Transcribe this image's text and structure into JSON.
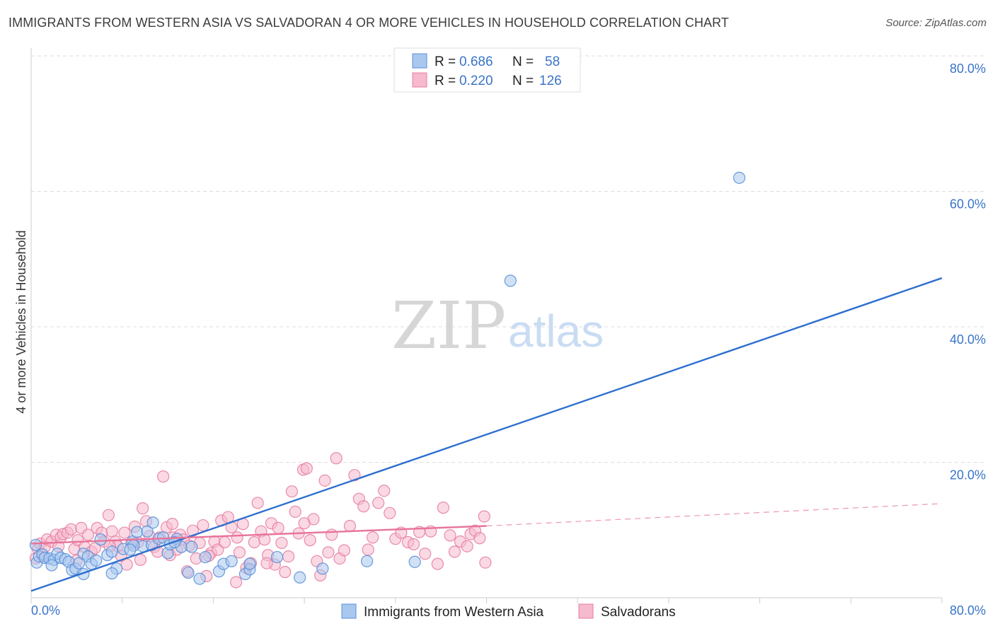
{
  "title": "IMMIGRANTS FROM WESTERN ASIA VS SALVADORAN 4 OR MORE VEHICLES IN HOUSEHOLD CORRELATION CHART",
  "source": "Source: ZipAtlas.com",
  "watermark": {
    "zip": "ZIP",
    "atlas": "atlas"
  },
  "legend": {
    "rows": [
      {
        "r_label": "R =",
        "r_value": "0.686",
        "n_label": "N =",
        "n_value": "58"
      },
      {
        "r_label": "R =",
        "r_value": "0.220",
        "n_label": "N =",
        "n_value": "126"
      }
    ]
  },
  "bottom_legend": [
    "Immigrants from Western Asia",
    "Salvadorans"
  ],
  "colors": {
    "blue_fill": "#a9c8ee",
    "blue_stroke": "#5a8fd8",
    "blue_line": "#2f6fcf",
    "pink_fill": "#f6b9cd",
    "pink_stroke": "#e77fa0",
    "pink_line": "#e8739a",
    "grid": "#dddddd",
    "axis_text": "#3a74c9"
  },
  "chart_data": {
    "type": "scatter",
    "title": "IMMIGRANTS FROM WESTERN ASIA VS SALVADORAN 4 OR MORE VEHICLES IN HOUSEHOLD CORRELATION CHART",
    "xlabel": "",
    "ylabel": "4 or more Vehicles in Household",
    "xlim": [
      0,
      80
    ],
    "ylim": [
      0,
      80
    ],
    "x_tick_labels": [
      "0.0%",
      "80.0%"
    ],
    "y_tick_labels": [
      "20.0%",
      "40.0%",
      "60.0%",
      "80.0%"
    ],
    "y_ticks": [
      20,
      40,
      60,
      80
    ],
    "grid": true,
    "legend_position": "top-center",
    "series": [
      {
        "name": "Immigrants from Western Asia",
        "color": "blue",
        "points": [
          [
            0.4,
            7.8
          ],
          [
            0.5,
            5.2
          ],
          [
            0.7,
            6.1
          ],
          [
            1.0,
            6.4
          ],
          [
            1.2,
            5.9
          ],
          [
            1.6,
            5.8
          ],
          [
            2.0,
            5.6
          ],
          [
            2.3,
            6.5
          ],
          [
            2.6,
            5.9
          ],
          [
            3.0,
            5.7
          ],
          [
            3.3,
            5.3
          ],
          [
            3.6,
            4.1
          ],
          [
            3.9,
            4.3
          ],
          [
            4.2,
            5.1
          ],
          [
            4.6,
            6.5
          ],
          [
            5.0,
            6.1
          ],
          [
            5.3,
            5.0
          ],
          [
            5.7,
            5.5
          ],
          [
            6.1,
            8.6
          ],
          [
            6.7,
            6.3
          ],
          [
            7.1,
            6.8
          ],
          [
            7.5,
            4.3
          ],
          [
            8.1,
            7.2
          ],
          [
            8.9,
            8.3
          ],
          [
            9.3,
            9.7
          ],
          [
            9.8,
            7.6
          ],
          [
            10.2,
            9.8
          ],
          [
            10.6,
            7.8
          ],
          [
            11.2,
            8.7
          ],
          [
            11.6,
            8.9
          ],
          [
            12.0,
            6.6
          ],
          [
            12.2,
            7.9
          ],
          [
            12.8,
            8.7
          ],
          [
            13.2,
            7.5
          ],
          [
            14.1,
            7.5
          ],
          [
            13.8,
            3.7
          ],
          [
            14.8,
            2.8
          ],
          [
            15.3,
            6.0
          ],
          [
            16.5,
            3.9
          ],
          [
            16.9,
            5.0
          ],
          [
            17.6,
            5.4
          ],
          [
            18.8,
            3.5
          ],
          [
            19.2,
            4.2
          ],
          [
            7.1,
            3.6
          ],
          [
            9.0,
            7.7
          ],
          [
            10.7,
            11.1
          ],
          [
            12.6,
            8.2
          ],
          [
            19.2,
            5.0
          ],
          [
            21.6,
            6.0
          ],
          [
            23.6,
            3.0
          ],
          [
            25.6,
            4.3
          ],
          [
            29.5,
            5.4
          ],
          [
            33.7,
            5.3
          ],
          [
            1.8,
            4.8
          ],
          [
            8.7,
            7.1
          ],
          [
            4.6,
            3.5
          ],
          [
            62.2,
            62.0
          ],
          [
            42.1,
            46.8
          ]
        ]
      },
      {
        "name": "Salvadorans",
        "color": "pink",
        "points": [
          [
            0.4,
            5.8
          ],
          [
            0.6,
            7.2
          ],
          [
            0.8,
            8.0
          ],
          [
            1.0,
            6.1
          ],
          [
            1.2,
            7.5
          ],
          [
            1.4,
            8.6
          ],
          [
            1.8,
            8.3
          ],
          [
            2.2,
            9.3
          ],
          [
            2.4,
            7.6
          ],
          [
            2.6,
            8.9
          ],
          [
            2.8,
            9.4
          ],
          [
            3.2,
            9.6
          ],
          [
            3.5,
            10.1
          ],
          [
            3.8,
            7.2
          ],
          [
            4.1,
            8.5
          ],
          [
            4.4,
            10.3
          ],
          [
            4.7,
            7.5
          ],
          [
            5.0,
            9.3
          ],
          [
            5.3,
            6.8
          ],
          [
            5.6,
            7.3
          ],
          [
            5.8,
            10.3
          ],
          [
            6.2,
            9.6
          ],
          [
            6.4,
            8.3
          ],
          [
            6.8,
            12.2
          ],
          [
            7.1,
            9.8
          ],
          [
            7.4,
            8.3
          ],
          [
            7.6,
            7.6
          ],
          [
            7.9,
            6.2
          ],
          [
            8.2,
            9.6
          ],
          [
            8.4,
            4.9
          ],
          [
            8.8,
            8.0
          ],
          [
            9.1,
            10.5
          ],
          [
            9.4,
            8.2
          ],
          [
            9.8,
            13.2
          ],
          [
            10.1,
            11.3
          ],
          [
            10.4,
            9.1
          ],
          [
            10.8,
            7.5
          ],
          [
            11.1,
            6.8
          ],
          [
            11.3,
            8.9
          ],
          [
            11.6,
            17.9
          ],
          [
            11.9,
            10.4
          ],
          [
            12.2,
            6.3
          ],
          [
            12.5,
            8.9
          ],
          [
            12.8,
            7.1
          ],
          [
            13.1,
            9.3
          ],
          [
            13.4,
            8.6
          ],
          [
            13.7,
            3.9
          ],
          [
            13.9,
            7.7
          ],
          [
            14.2,
            9.9
          ],
          [
            14.5,
            5.8
          ],
          [
            14.8,
            8.1
          ],
          [
            15.1,
            10.7
          ],
          [
            15.4,
            3.2
          ],
          [
            15.8,
            6.6
          ],
          [
            16.1,
            8.3
          ],
          [
            16.4,
            7.1
          ],
          [
            16.7,
            11.4
          ],
          [
            17.0,
            8.2
          ],
          [
            17.3,
            11.9
          ],
          [
            17.6,
            10.4
          ],
          [
            18.0,
            2.3
          ],
          [
            18.3,
            6.7
          ],
          [
            18.6,
            10.9
          ],
          [
            18.9,
            4.4
          ],
          [
            19.3,
            5.1
          ],
          [
            19.6,
            8.2
          ],
          [
            19.9,
            14.0
          ],
          [
            20.2,
            9.8
          ],
          [
            20.5,
            8.6
          ],
          [
            20.8,
            6.3
          ],
          [
            21.1,
            11.0
          ],
          [
            21.4,
            4.9
          ],
          [
            21.7,
            10.3
          ],
          [
            22.0,
            8.1
          ],
          [
            22.3,
            3.8
          ],
          [
            22.6,
            6.1
          ],
          [
            22.9,
            15.7
          ],
          [
            23.2,
            12.7
          ],
          [
            23.5,
            9.5
          ],
          [
            23.9,
            18.9
          ],
          [
            24.2,
            19.1
          ],
          [
            24.5,
            8.5
          ],
          [
            24.8,
            11.6
          ],
          [
            25.1,
            5.4
          ],
          [
            25.4,
            3.3
          ],
          [
            25.8,
            17.3
          ],
          [
            26.1,
            6.7
          ],
          [
            26.4,
            9.3
          ],
          [
            26.8,
            20.6
          ],
          [
            27.1,
            5.8
          ],
          [
            27.5,
            7.0
          ],
          [
            28.0,
            10.6
          ],
          [
            28.4,
            18.1
          ],
          [
            28.8,
            14.6
          ],
          [
            29.2,
            13.5
          ],
          [
            29.6,
            7.1
          ],
          [
            30.0,
            8.9
          ],
          [
            30.5,
            14.0
          ],
          [
            31.0,
            15.8
          ],
          [
            31.5,
            12.5
          ],
          [
            32.0,
            8.7
          ],
          [
            32.5,
            9.6
          ],
          [
            33.1,
            8.2
          ],
          [
            33.6,
            7.9
          ],
          [
            34.1,
            9.7
          ],
          [
            34.6,
            6.5
          ],
          [
            35.1,
            9.8
          ],
          [
            35.7,
            5.0
          ],
          [
            36.2,
            13.3
          ],
          [
            36.8,
            9.2
          ],
          [
            37.2,
            6.8
          ],
          [
            37.7,
            8.3
          ],
          [
            38.3,
            7.6
          ],
          [
            38.6,
            9.4
          ],
          [
            39.0,
            9.9
          ],
          [
            39.4,
            8.8
          ],
          [
            39.8,
            12.0
          ],
          [
            39.9,
            5.2
          ],
          [
            4.0,
            5.5
          ],
          [
            6.9,
            7.6
          ],
          [
            9.6,
            5.6
          ],
          [
            12.4,
            10.9
          ],
          [
            15.6,
            6.2
          ],
          [
            18.1,
            8.9
          ],
          [
            20.7,
            5.1
          ],
          [
            24.0,
            11.0
          ]
        ]
      }
    ],
    "trend_lines": [
      {
        "series": "Immigrants from Western Asia",
        "x": [
          0,
          80
        ],
        "y": [
          1.0,
          47.2
        ],
        "style": "solid"
      },
      {
        "series": "Salvadorans",
        "x": [
          0,
          40
        ],
        "y": [
          8.0,
          10.6
        ],
        "style": "solid"
      },
      {
        "series": "Salvadorans",
        "x": [
          40,
          80
        ],
        "y": [
          10.6,
          13.9
        ],
        "style": "dashed"
      }
    ]
  }
}
